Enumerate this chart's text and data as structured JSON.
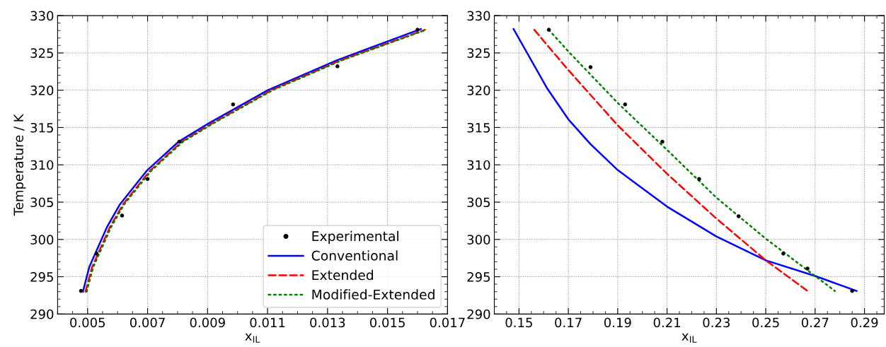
{
  "chart_data": [
    {
      "type": "line",
      "xlabel": "x$_{IL}$",
      "ylabel": "Temperature / K",
      "xlim": [
        0.004,
        0.017
      ],
      "xticks": [
        0.005,
        0.007,
        0.009,
        0.011,
        0.013,
        0.015,
        0.017
      ],
      "ylim": [
        290,
        330
      ],
      "yticks": [
        290,
        295,
        300,
        305,
        310,
        315,
        320,
        325,
        330
      ],
      "grid": true,
      "legend": "bottom right",
      "series": [
        {
          "name": "Experimental",
          "type": "scatter",
          "marker": "circle",
          "color": "#000000",
          "x": [
            0.00478,
            0.0053,
            0.00615,
            0.007,
            0.00806,
            0.00985,
            0.01333,
            0.016
          ],
          "values": [
            293.1,
            298.1,
            303.2,
            308.1,
            313.1,
            318.1,
            323.2,
            328.1
          ]
        },
        {
          "name": "Conventional",
          "line_style": "solid",
          "color": "#0000ff",
          "x": [
            0.004845,
            0.005057,
            0.005652,
            0.006078,
            0.006971,
            0.008033,
            0.009055,
            0.01101,
            0.013307,
            0.016112
          ],
          "values": [
            293.0,
            296.3,
            301.7,
            304.7,
            309.2,
            313.1,
            315.6,
            320.0,
            324.0,
            328.2
          ]
        },
        {
          "name": "Extended",
          "line_style": "dashed",
          "color": "#ff0000",
          "x": [
            0.00493,
            0.00515,
            0.00575,
            0.00618,
            0.00708,
            0.00814,
            0.00917,
            0.01113,
            0.01343,
            0.01625
          ],
          "values": [
            293.0,
            296.3,
            301.7,
            304.7,
            309.2,
            313.1,
            315.6,
            320.0,
            324.0,
            328.1
          ]
        },
        {
          "name": "Modified-Extended",
          "line_style": "dotted",
          "color": "#008000",
          "x": [
            0.00497,
            0.00519,
            0.00579,
            0.00622,
            0.00712,
            0.00818,
            0.00921,
            0.01117,
            0.01347,
            0.01629
          ],
          "values": [
            293.0,
            296.3,
            301.7,
            304.7,
            309.2,
            313.1,
            315.6,
            320.0,
            324.0,
            328.1
          ]
        }
      ]
    },
    {
      "type": "line",
      "xlabel": "x$_{IL}$",
      "xlim": [
        0.14,
        0.298
      ],
      "xticks": [
        0.15,
        0.17,
        0.19,
        0.21,
        0.23,
        0.25,
        0.27,
        0.29
      ],
      "ylim": [
        290,
        330
      ],
      "yticks": [
        290,
        295,
        300,
        305,
        310,
        315,
        320,
        325,
        330
      ],
      "grid": true,
      "legend": false,
      "series": [
        {
          "type": "scatter",
          "marker": "circle",
          "color": "#000000",
          "x": [
            0.1621,
            0.179,
            0.193,
            0.2081,
            0.223,
            0.239,
            0.2571,
            0.2669,
            0.285
          ],
          "values": [
            328.1,
            323.1,
            318.1,
            313.1,
            308.1,
            303.1,
            298.1,
            296.1,
            293.1
          ]
        },
        {
          "line_style": "solid",
          "color": "#0000ff",
          "x": [
            0.1478,
            0.1615,
            0.17,
            0.1789,
            0.19,
            0.21,
            0.23,
            0.25,
            0.27,
            0.2868
          ],
          "values": [
            328.2,
            320.2,
            316.1,
            312.8,
            309.3,
            304.4,
            300.4,
            297.2,
            295.1,
            293.1
          ]
        },
        {
          "line_style": "dashed",
          "color": "#ff0000",
          "x": [
            0.1562,
            0.17,
            0.19,
            0.21,
            0.23,
            0.25,
            0.2669
          ],
          "values": [
            328.1,
            322.7,
            315.3,
            308.8,
            302.8,
            297.2,
            293.1
          ]
        },
        {
          "line_style": "dotted",
          "color": "#008000",
          "x": [
            0.1621,
            0.17,
            0.19,
            0.21,
            0.23,
            0.25,
            0.27,
            0.278
          ],
          "values": [
            328.1,
            325.2,
            318.3,
            312.0,
            305.6,
            300.1,
            295.1,
            293.1
          ]
        }
      ]
    }
  ]
}
